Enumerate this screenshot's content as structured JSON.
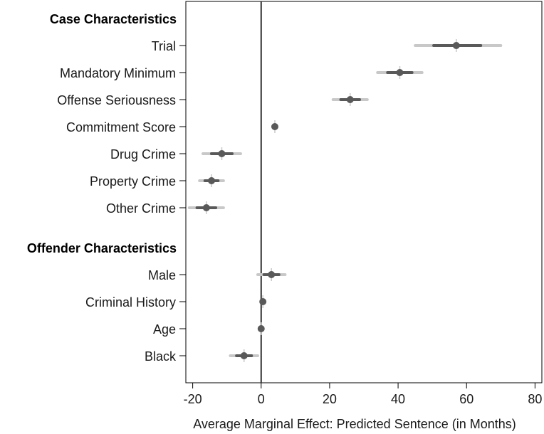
{
  "chart_data": {
    "type": "scatter",
    "orientation": "horizontal",
    "title": "",
    "xlabel": "Average Marginal Effect: Predicted Sentence (in Months)",
    "ylabel": "",
    "xlim": [
      -22,
      82
    ],
    "xticks": [
      -20,
      0,
      20,
      40,
      60,
      80
    ],
    "xtick_labels": [
      "-20",
      "0",
      "20",
      "40",
      "60",
      "80"
    ],
    "reference_line": 0,
    "grid": false,
    "colors": {
      "point": "#595959",
      "ci": "#c8c8c8",
      "ref_line": "#333333"
    },
    "groups": [
      {
        "label": "Case Characteristics",
        "items": [
          {
            "label": "Trial",
            "estimate": 57,
            "ci_low": 45,
            "ci_high": 70
          },
          {
            "label": "Mandatory Minimum",
            "estimate": 40.5,
            "ci_low": 34,
            "ci_high": 47
          },
          {
            "label": "Offense Seriousness",
            "estimate": 26,
            "ci_low": 21,
            "ci_high": 31
          },
          {
            "label": "Commitment Score",
            "estimate": 4,
            "ci_low": 3.5,
            "ci_high": 4.5
          },
          {
            "label": "Drug Crime",
            "estimate": -11.5,
            "ci_low": -17,
            "ci_high": -6
          },
          {
            "label": "Property Crime",
            "estimate": -14.5,
            "ci_low": -18,
            "ci_high": -11
          },
          {
            "label": "Other Crime",
            "estimate": -16,
            "ci_low": -21,
            "ci_high": -11
          }
        ]
      },
      {
        "label": "Offender Characteristics",
        "items": [
          {
            "label": "Male",
            "estimate": 3,
            "ci_low": -1,
            "ci_high": 7
          },
          {
            "label": "Criminal History",
            "estimate": 0.5,
            "ci_low": 0,
            "ci_high": 1
          },
          {
            "label": "Age",
            "estimate": 0,
            "ci_low": -0.3,
            "ci_high": 0.3
          },
          {
            "label": "Black",
            "estimate": -5,
            "ci_low": -9,
            "ci_high": -1
          }
        ]
      }
    ]
  }
}
